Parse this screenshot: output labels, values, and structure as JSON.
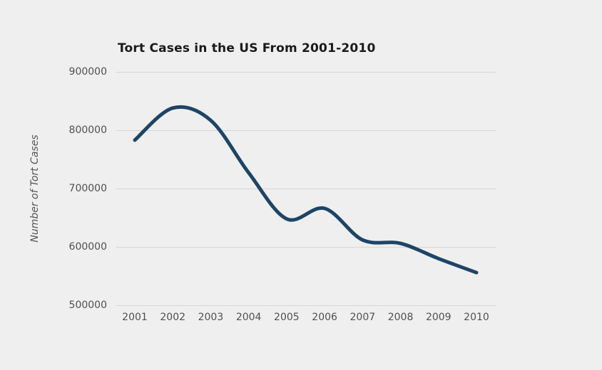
{
  "chart_data": {
    "type": "line",
    "title": "Tort Cases in the US From 2001-2010",
    "xlabel": "",
    "ylabel": "Number of Tort Cases",
    "x": [
      2001,
      2002,
      2003,
      2004,
      2005,
      2006,
      2007,
      2008,
      2009,
      2010
    ],
    "xtick_labels": [
      "2001",
      "2002",
      "2003",
      "2004",
      "2005",
      "2006",
      "2007",
      "2008",
      "2009",
      "2010"
    ],
    "series": [
      {
        "name": "Number of Tort Cases",
        "values": [
          783000,
          838000,
          817000,
          727000,
          648000,
          666000,
          612000,
          606000,
          580000,
          556000
        ]
      }
    ],
    "ylim": [
      500000,
      900000
    ],
    "yticks": [
      500000,
      600000,
      700000,
      800000,
      900000
    ],
    "ytick_labels": [
      "500000",
      "600000",
      "700000",
      "800000",
      "900000"
    ],
    "grid": "horizontal-only",
    "legend_position": "none",
    "smooth": true
  },
  "colors": {
    "background": "#efefef",
    "gridline": "#d5d5d5",
    "line": "#1e4466",
    "title_text": "#1a1a1a",
    "tick_text": "#4f4f4f",
    "axis_title_text": "#555555"
  }
}
